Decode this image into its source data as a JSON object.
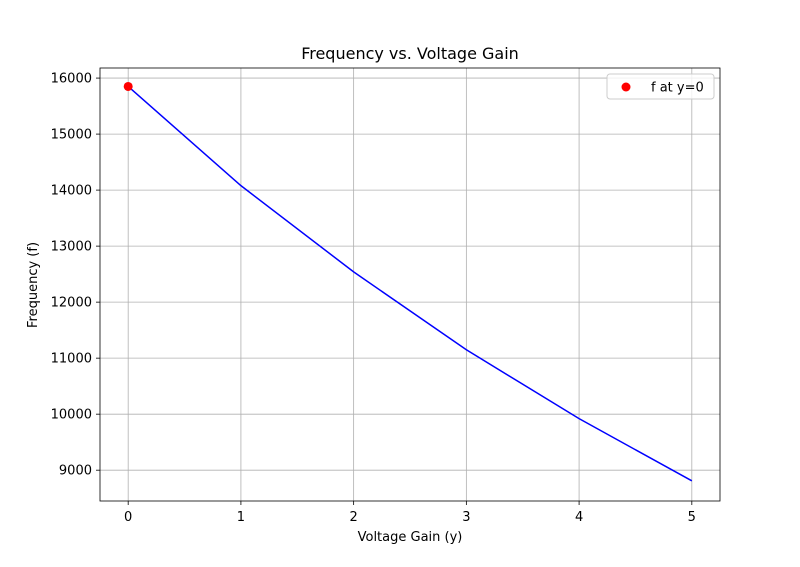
{
  "chart_data": {
    "type": "line",
    "title": "Frequency vs. Voltage Gain",
    "xlabel": "Voltage Gain (y)",
    "ylabel": "Frequency (f)",
    "xlim": [
      -0.25,
      5.25
    ],
    "ylim": [
      8450,
      16180
    ],
    "xticks": [
      0,
      1,
      2,
      3,
      4,
      5
    ],
    "yticks": [
      9000,
      10000,
      11000,
      12000,
      13000,
      14000,
      15000,
      16000
    ],
    "grid": true,
    "legend_position": "top-right",
    "series": [
      {
        "kind": "line",
        "color": "#0000ff",
        "x": [
          0,
          1,
          2,
          3,
          4,
          5
        ],
        "y": [
          15850,
          14080,
          12540,
          11150,
          9920,
          8810
        ]
      }
    ],
    "points": [
      {
        "name": "f at y=0",
        "color": "#ff0000",
        "x": 0,
        "y": 15850
      }
    ]
  }
}
